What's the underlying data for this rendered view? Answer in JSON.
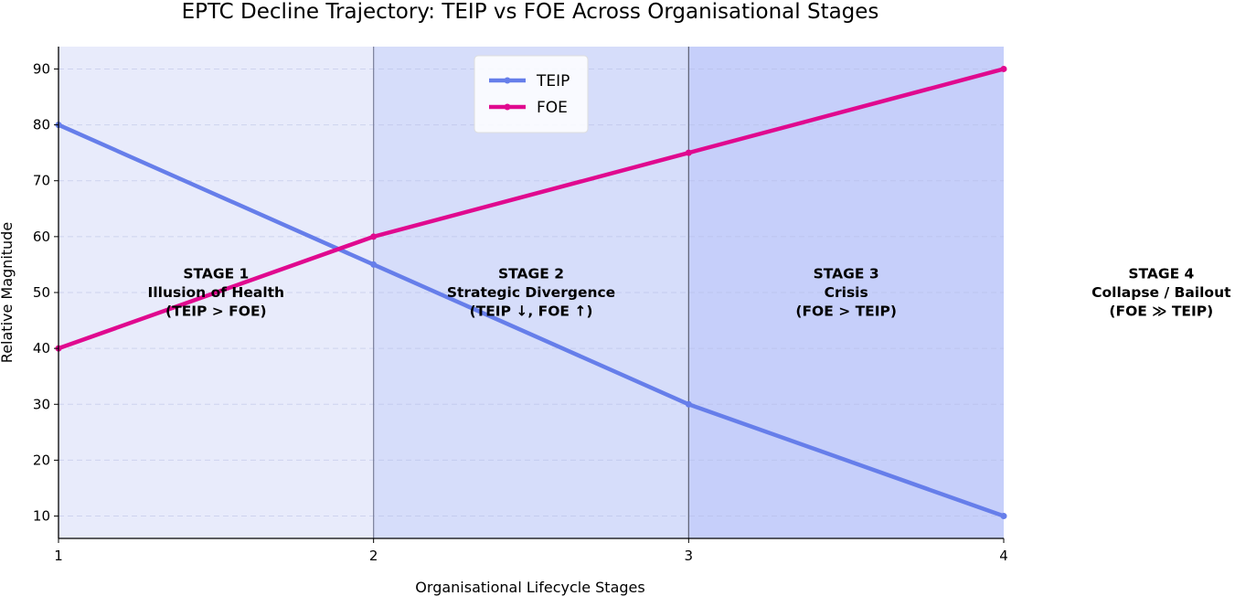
{
  "chart_data": {
    "type": "line",
    "title": "EPTC Decline Trajectory: TEIP vs FOE Across Organisational Stages",
    "xlabel": "Organisational Lifecycle Stages",
    "ylabel": "Relative Magnitude",
    "x": [
      1,
      2,
      3,
      4
    ],
    "x_ticks": [
      "1",
      "2",
      "3",
      "4"
    ],
    "y_ticks": [
      "10",
      "20",
      "30",
      "40",
      "50",
      "60",
      "70",
      "80",
      "90"
    ],
    "xlim": [
      1,
      4
    ],
    "ylim": [
      6,
      94
    ],
    "grid": "horizontal dashed",
    "legend_position": "upper center",
    "series": [
      {
        "name": "TEIP",
        "values": [
          80,
          55,
          30,
          10
        ],
        "color": "#667eea"
      },
      {
        "name": "FOE",
        "values": [
          40,
          60,
          75,
          90
        ],
        "color": "#e0098f"
      }
    ],
    "bands": [
      {
        "from": 1,
        "to": 2,
        "color": "#e8ebfb"
      },
      {
        "from": 2,
        "to": 3,
        "color": "#d6ddfa"
      },
      {
        "from": 3,
        "to": 4,
        "color": "#c6cffa"
      }
    ],
    "stage_annotations": [
      {
        "x": 1.5,
        "y": 50,
        "lines": [
          "STAGE 1",
          "Illusion of Health",
          "(TEIP > FOE)"
        ]
      },
      {
        "x": 2.5,
        "y": 50,
        "lines": [
          "STAGE 2",
          "Strategic Divergence",
          "(TEIP ↓, FOE ↑)"
        ]
      },
      {
        "x": 3.5,
        "y": 50,
        "lines": [
          "STAGE 3",
          "Crisis",
          "(FOE > TEIP)"
        ]
      },
      {
        "x": 4.5,
        "y": 50,
        "lines": [
          "STAGE 4",
          "Collapse / Bailout",
          "(FOE ≫ TEIP)"
        ]
      }
    ]
  }
}
